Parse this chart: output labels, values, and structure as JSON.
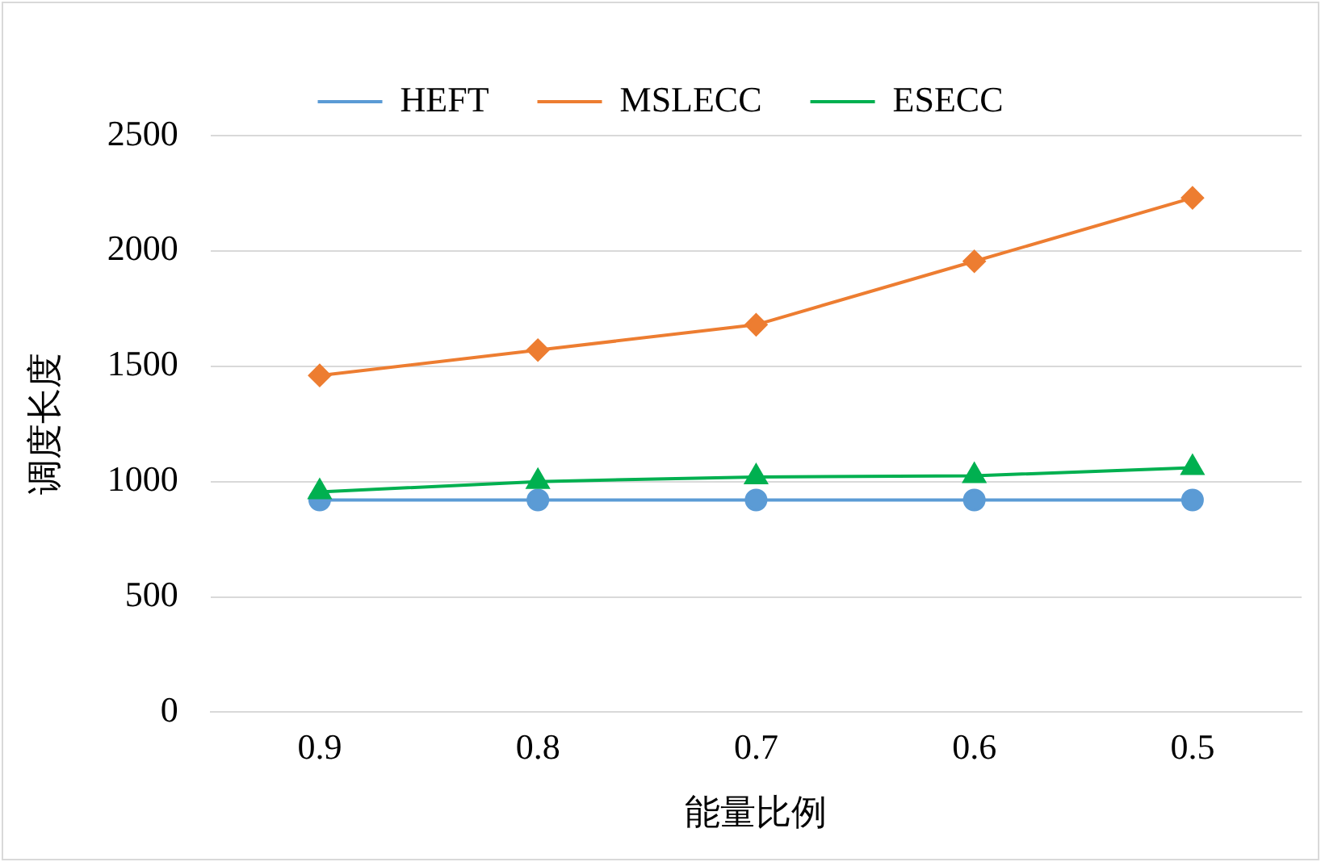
{
  "chart_data": {
    "type": "line",
    "xlabel": "能量比例",
    "ylabel": "调度长度",
    "categories": [
      "0.9",
      "0.8",
      "0.7",
      "0.6",
      "0.5"
    ],
    "series": [
      {
        "name": "HEFT",
        "color": "#5b9bd5",
        "marker": "circle",
        "values": [
          920,
          920,
          920,
          920,
          920
        ]
      },
      {
        "name": "MSLECC",
        "color": "#ed7d31",
        "marker": "diamond",
        "values": [
          1460,
          1570,
          1680,
          1955,
          2230
        ]
      },
      {
        "name": "ESECC",
        "color": "#00b050",
        "marker": "triangle",
        "values": [
          955,
          1000,
          1020,
          1025,
          1060
        ]
      }
    ],
    "ylim": [
      0,
      2500
    ],
    "yticks": [
      0,
      500,
      1000,
      1500,
      2000,
      2500
    ],
    "grid": "y",
    "legend": "top"
  }
}
